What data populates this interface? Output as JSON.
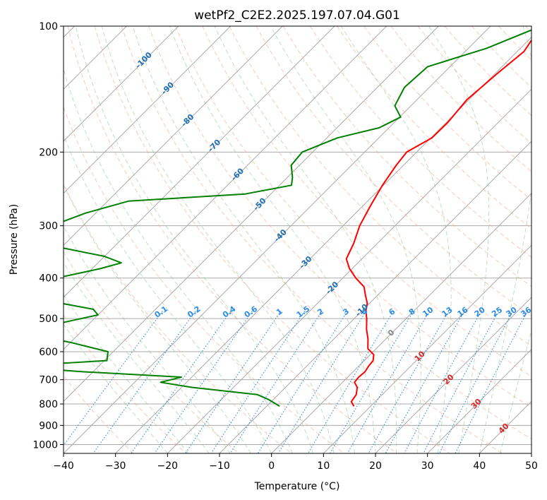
{
  "chart_data": {
    "type": "skew-t log-p",
    "title": "wetPf2_C2E2.2025.197.07.04.G01",
    "xlabel": "Temperature (°C)",
    "ylabel": "Pressure (hPa)",
    "xlim": [
      -40,
      50
    ],
    "ylim": [
      1050,
      100
    ],
    "y_scale": "log",
    "grid": true,
    "x_ticks": [
      -40,
      -30,
      -20,
      -10,
      0,
      10,
      20,
      30,
      40,
      50
    ],
    "x_tick_labels": [
      "−40",
      "−30",
      "−20",
      "−10",
      "0",
      "10",
      "20",
      "30",
      "40",
      "50"
    ],
    "y_ticks": [
      100,
      200,
      300,
      400,
      500,
      600,
      700,
      800,
      900,
      1000
    ],
    "y_tick_labels": [
      "100",
      "200",
      "300",
      "400",
      "500",
      "600",
      "700",
      "800",
      "900",
      "1000"
    ],
    "isotherm_labels": [
      {
        "t": -100,
        "p": 120,
        "color": "#1f6fb4"
      },
      {
        "t": -90,
        "p": 140,
        "color": "#1f6fb4"
      },
      {
        "t": -80,
        "p": 167,
        "color": "#1f6fb4"
      },
      {
        "t": -70,
        "p": 192,
        "color": "#1f6fb4"
      },
      {
        "t": -60,
        "p": 225,
        "color": "#1f6fb4"
      },
      {
        "t": -50,
        "p": 265,
        "color": "#1f6fb4"
      },
      {
        "t": -40,
        "p": 315,
        "color": "#1f6fb4"
      },
      {
        "t": -30,
        "p": 365,
        "color": "#1f6fb4"
      },
      {
        "t": -20,
        "p": 420,
        "color": "#1f6fb4"
      },
      {
        "t": -10,
        "p": 475,
        "color": "#1f6fb4"
      },
      {
        "t": 0,
        "p": 538,
        "color": "#888888"
      },
      {
        "t": 10,
        "p": 612,
        "color": "#d62728"
      },
      {
        "t": 20,
        "p": 695,
        "color": "#d62728"
      },
      {
        "t": 30,
        "p": 795,
        "color": "#d62728"
      },
      {
        "t": 40,
        "p": 910,
        "color": "#d62728"
      }
    ],
    "mixing_ratio_labels": [
      "0.1",
      "0.2",
      "0.4",
      "0.6",
      "1",
      "1.5",
      "2",
      "3",
      "4",
      "6",
      "8",
      "10",
      "13",
      "16",
      "20",
      "25",
      "30",
      "36"
    ],
    "series": [
      {
        "name": "Temperature",
        "color": "#ff0000",
        "points": [
          [
            100,
            -30.3
          ],
          [
            115,
            -28.7
          ],
          [
            130,
            -29.6
          ],
          [
            150,
            -30.4
          ],
          [
            170,
            -29.7
          ],
          [
            185,
            -29.8
          ],
          [
            200,
            -31.9
          ],
          [
            215,
            -31.4
          ],
          [
            240,
            -30.2
          ],
          [
            270,
            -28.5
          ],
          [
            300,
            -26.8
          ],
          [
            330,
            -24.6
          ],
          [
            360,
            -23.0
          ],
          [
            380,
            -20.5
          ],
          [
            400,
            -17.5
          ],
          [
            420,
            -14.2
          ],
          [
            440,
            -12.3
          ],
          [
            460,
            -10.4
          ],
          [
            480,
            -9.2
          ],
          [
            500,
            -7.6
          ],
          [
            530,
            -5.6
          ],
          [
            560,
            -3.4
          ],
          [
            590,
            -1.6
          ],
          [
            610,
            0.7
          ],
          [
            630,
            1.7
          ],
          [
            650,
            1.9
          ],
          [
            670,
            2.3
          ],
          [
            690,
            2.1
          ],
          [
            710,
            2.3
          ],
          [
            730,
            3.8
          ],
          [
            760,
            5.0
          ],
          [
            790,
            5.4
          ],
          [
            810,
            6.8
          ]
        ]
      },
      {
        "name": "Dewpoint",
        "color": "#008000",
        "points": [
          [
            100,
            -30.3
          ],
          [
            113,
            -36.5
          ],
          [
            125,
            -44.3
          ],
          [
            140,
            -44.8
          ],
          [
            155,
            -43.1
          ],
          [
            165,
            -39.8
          ],
          [
            175,
            -41.9
          ],
          [
            185,
            -48.0
          ],
          [
            200,
            -52.0
          ],
          [
            215,
            -51.6
          ],
          [
            230,
            -49.0
          ],
          [
            240,
            -47.7
          ],
          [
            252,
            -55.0
          ],
          [
            262,
            -76.0
          ],
          [
            280,
            -82.0
          ],
          [
            300,
            -86.0
          ],
          [
            325,
            -89.0
          ],
          [
            340,
            -79.0
          ],
          [
            355,
            -70.0
          ],
          [
            368,
            -65.5
          ],
          [
            380,
            -68.5
          ],
          [
            400,
            -75.0
          ],
          [
            425,
            -82.0
          ],
          [
            450,
            -74.0
          ],
          [
            475,
            -62.0
          ],
          [
            490,
            -60.0
          ],
          [
            510,
            -65.0
          ],
          [
            540,
            -72.0
          ],
          [
            570,
            -60.0
          ],
          [
            600,
            -51.0
          ],
          [
            630,
            -49.5
          ],
          [
            650,
            -67.0
          ],
          [
            670,
            -52.0
          ],
          [
            690,
            -32.0
          ],
          [
            710,
            -35.0
          ],
          [
            730,
            -28.0
          ],
          [
            760,
            -14.0
          ],
          [
            780,
            -11.0
          ],
          [
            810,
            -7.5
          ]
        ]
      }
    ]
  }
}
